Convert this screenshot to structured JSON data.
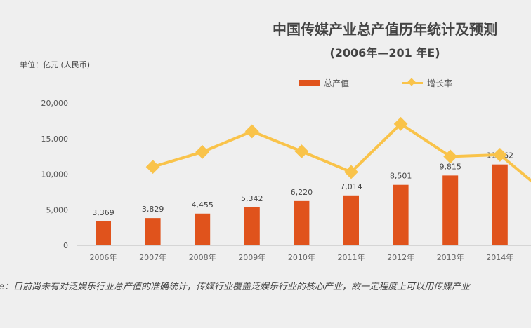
{
  "chart_data": {
    "type": "bar+line",
    "title": "中国传媒产业总产值历年统计及预测",
    "subtitle": "(2006年—201  年E)",
    "ylabel": "单位：亿元 (人民币)",
    "categories": [
      "2006年",
      "2007年",
      "2008年",
      "2009年",
      "2010年",
      "2011年",
      "2012年",
      "2013年",
      "2014年"
    ],
    "series": [
      {
        "name": "总产值",
        "type": "bar",
        "color": "#e0531c",
        "values": [
          3369,
          3829,
          4455,
          5342,
          6220,
          7014,
          8501,
          9815,
          11362
        ],
        "labels": [
          "3,369",
          "3,829",
          "4,455",
          "5,342",
          "6,220",
          "7,014",
          "8,501",
          "9,815",
          "11,362"
        ]
      },
      {
        "name": "增长率",
        "type": "line",
        "color": "#f9c34a",
        "unit": "%",
        "values": [
          null,
          13.7,
          16.3,
          19.9,
          16.4,
          12.8,
          21.2,
          15.5,
          15.8
        ]
      }
    ],
    "yticks": [
      "0",
      "5,000",
      "10,000",
      "15,000",
      "20,000"
    ],
    "ylim": [
      0,
      20000
    ],
    "grid": false,
    "legend": "top"
  },
  "note": "e：目前尚未有对泛娱乐行业总产值的准确统计，传媒行业覆盖泛娱乐行业的核心产业，故一定程度上可以用传媒产业"
}
